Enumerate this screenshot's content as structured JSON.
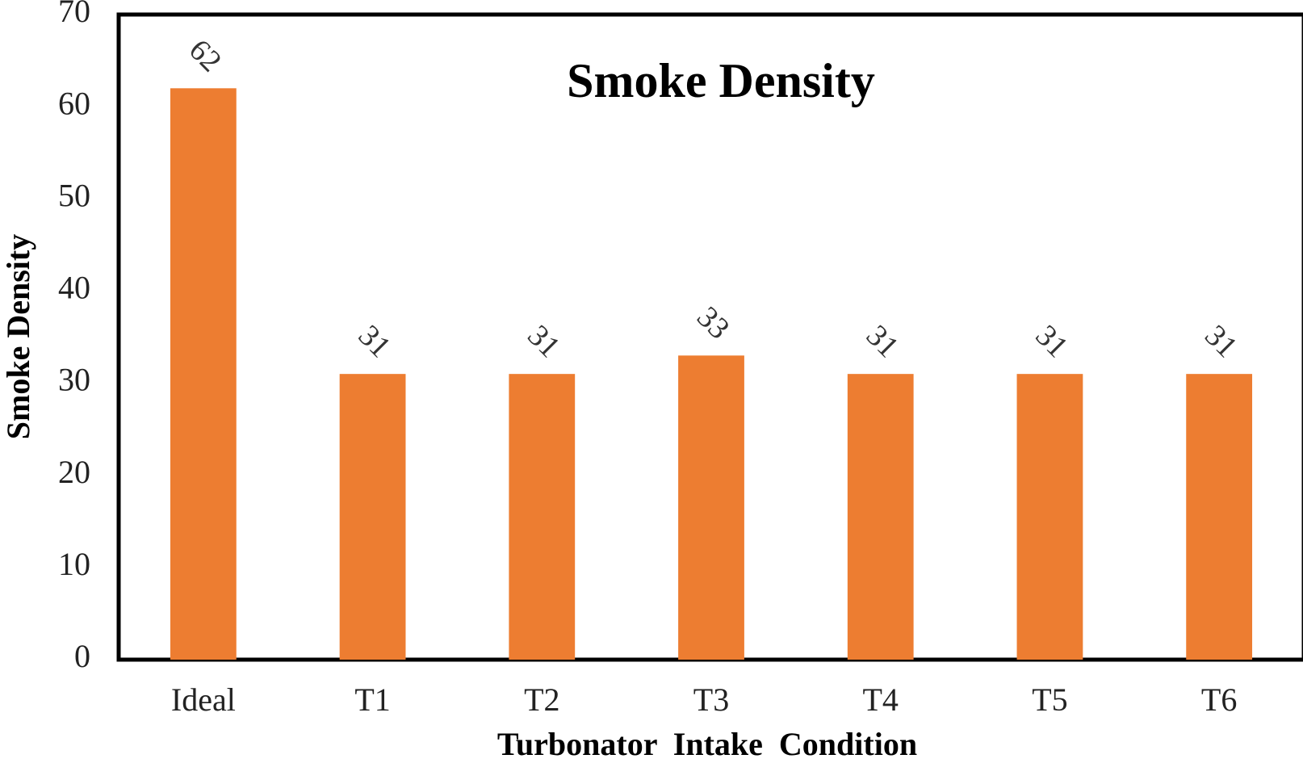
{
  "chart_data": {
    "type": "bar",
    "title": "Smoke Density",
    "xlabel": "Turbonator  Intake  Condition",
    "ylabel": "Smoke Density",
    "categories": [
      "Ideal",
      "T1",
      "T2",
      "T3",
      "T4",
      "T5",
      "T6"
    ],
    "values": [
      62,
      31,
      31,
      33,
      31,
      31,
      31
    ],
    "data_labels": [
      "62",
      "31",
      "31",
      "33",
      "31",
      "31",
      "31"
    ],
    "ylim": [
      0,
      70
    ],
    "yticks": [
      "0",
      "10",
      "20",
      "30",
      "40",
      "50",
      "60",
      "70"
    ],
    "grid": false,
    "legend": "none",
    "bar_color": "#ED7D31"
  }
}
